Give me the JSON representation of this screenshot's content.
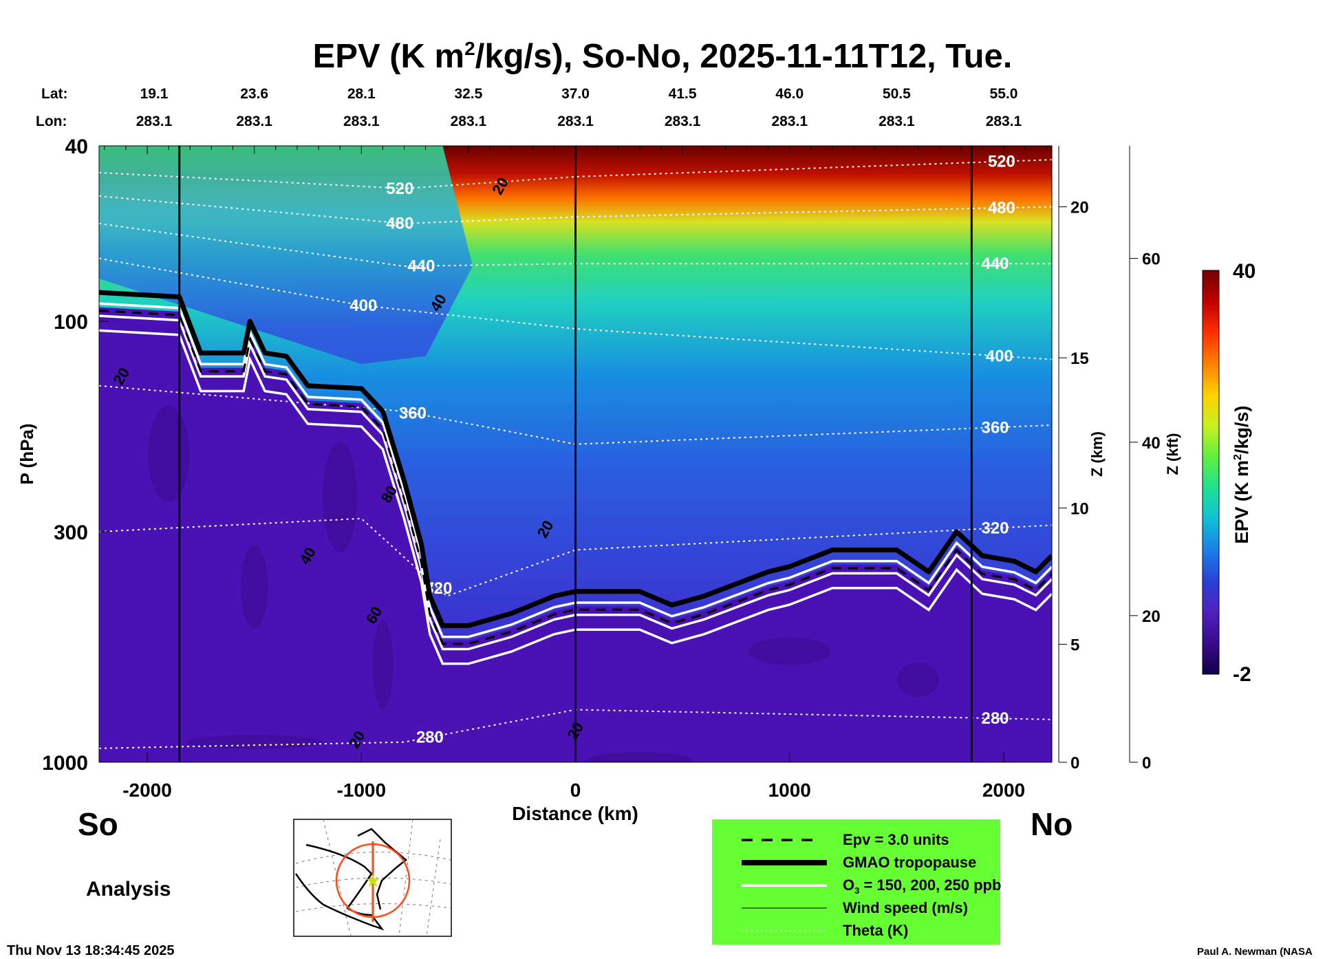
{
  "chart_data": {
    "type": "heatmap",
    "title_main": "EPV (K m",
    "title_sup": "2",
    "title_rest": "/kg/s), So-No, 2025-11-11T12, Tue.",
    "lat_label": "Lat:",
    "lon_label": "Lon:",
    "lats": [
      "19.1",
      "23.6",
      "28.1",
      "32.5",
      "37.0",
      "41.5",
      "46.0",
      "50.5",
      "55.0"
    ],
    "lons": [
      "283.1",
      "283.1",
      "283.1",
      "283.1",
      "283.1",
      "283.1",
      "283.1",
      "283.1",
      "283.1"
    ],
    "latlon_km": [
      -2000,
      -1500,
      -1000,
      -500,
      0,
      500,
      1000,
      1500,
      2000
    ],
    "xlabel": "Distance (km)",
    "xlim": [
      -2225,
      2225
    ],
    "xticks": [
      -2000,
      -1000,
      0,
      1000,
      2000
    ],
    "xtick_labels": [
      "-2000",
      "-1000",
      "0",
      "1000",
      "2000"
    ],
    "ylabel": "P (hPa)",
    "ylim": [
      1000,
      40
    ],
    "yticks": [
      40,
      100,
      300,
      1000
    ],
    "ytick_labels": [
      "40",
      "100",
      "300",
      "1000"
    ],
    "z_km_label": "Z (km)",
    "z_km_ticks": [
      {
        "p": 1000,
        "label": "0"
      },
      {
        "p": 540,
        "label": "5"
      },
      {
        "p": 265,
        "label": "10"
      },
      {
        "p": 121,
        "label": "15"
      },
      {
        "p": 55,
        "label": "20"
      }
    ],
    "z_kft_label": "Z (kft)",
    "z_kft_ticks": [
      {
        "p": 1000,
        "label": "0"
      },
      {
        "p": 465,
        "label": "20"
      },
      {
        "p": 188,
        "label": "40"
      },
      {
        "p": 72,
        "label": "60"
      }
    ],
    "vertical_lines_km": [
      -1850,
      0,
      1850
    ],
    "colorbar": {
      "label_main": "EPV (K m",
      "label_sup": "2",
      "label_rest": "/kg/s)",
      "min_label": "-2",
      "max_label": "40",
      "min": -2,
      "max": 40,
      "colors": [
        "#10004a",
        "#3a0a8c",
        "#5020c0",
        "#2a40d8",
        "#1a80e8",
        "#10c0d8",
        "#20e090",
        "#60f040",
        "#c8f020",
        "#ffd000",
        "#ff8000",
        "#ff3000",
        "#c00000",
        "#700000"
      ]
    },
    "tropopause": [
      [
        -2225,
        86
      ],
      [
        -1850,
        88
      ],
      [
        -1750,
        118
      ],
      [
        -1550,
        118
      ],
      [
        -1520,
        100
      ],
      [
        -1450,
        118
      ],
      [
        -1350,
        120
      ],
      [
        -1250,
        140
      ],
      [
        -1000,
        142
      ],
      [
        -900,
        160
      ],
      [
        -800,
        230
      ],
      [
        -720,
        320
      ],
      [
        -680,
        420
      ],
      [
        -620,
        490
      ],
      [
        -500,
        490
      ],
      [
        -300,
        460
      ],
      [
        -100,
        420
      ],
      [
        0,
        410
      ],
      [
        300,
        410
      ],
      [
        450,
        440
      ],
      [
        600,
        420
      ],
      [
        900,
        370
      ],
      [
        1000,
        360
      ],
      [
        1200,
        330
      ],
      [
        1500,
        330
      ],
      [
        1650,
        370
      ],
      [
        1780,
        300
      ],
      [
        1900,
        340
      ],
      [
        2050,
        350
      ],
      [
        2150,
        370
      ],
      [
        2225,
        340
      ]
    ],
    "theta_contours": [
      {
        "label": "520",
        "points": [
          [
            -2225,
            46
          ],
          [
            -800,
            50
          ],
          [
            0,
            47
          ],
          [
            2225,
            43
          ]
        ],
        "label_km": [
          -820,
          1990
        ]
      },
      {
        "label": "480",
        "points": [
          [
            -2225,
            52
          ],
          [
            -800,
            60
          ],
          [
            0,
            58
          ],
          [
            2225,
            55
          ]
        ],
        "label_km": [
          -820,
          1990
        ]
      },
      {
        "label": "440",
        "points": [
          [
            -2225,
            60
          ],
          [
            -800,
            75
          ],
          [
            0,
            74
          ],
          [
            2225,
            74
          ]
        ],
        "label_km": [
          -720,
          1960
        ]
      },
      {
        "label": "400",
        "points": [
          [
            -2225,
            72
          ],
          [
            -1000,
            92
          ],
          [
            0,
            104
          ],
          [
            2225,
            122
          ]
        ],
        "label_km": [
          -990,
          1980
        ]
      },
      {
        "label": "360",
        "points": [
          [
            -2225,
            140
          ],
          [
            -800,
            160
          ],
          [
            0,
            190
          ],
          [
            2225,
            172
          ]
        ],
        "label_km": [
          -760,
          1960
        ]
      },
      {
        "label": "320",
        "points": [
          [
            -2225,
            300
          ],
          [
            -1000,
            280
          ],
          [
            -600,
            420
          ],
          [
            0,
            330
          ],
          [
            2225,
            290
          ]
        ],
        "label_km": [
          -640,
          1960
        ]
      },
      {
        "label": "280",
        "points": [
          [
            -2225,
            930
          ],
          [
            -800,
            900
          ],
          [
            0,
            760
          ],
          [
            2225,
            800
          ]
        ],
        "label_km": [
          -680,
          1960
        ]
      }
    ],
    "wind_labels": [
      {
        "text": "20",
        "km": -330,
        "p": 50
      },
      {
        "text": "40",
        "km": -620,
        "p": 92
      },
      {
        "text": "20",
        "km": -2100,
        "p": 135
      },
      {
        "text": "80",
        "km": -850,
        "p": 250
      },
      {
        "text": "40",
        "km": -1230,
        "p": 345
      },
      {
        "text": "60",
        "km": -920,
        "p": 470
      },
      {
        "text": "20",
        "km": -120,
        "p": 300
      },
      {
        "text": "20",
        "km": -1000,
        "p": 900
      },
      {
        "text": "20",
        "km": 20,
        "p": 860
      }
    ],
    "legend_placement": "bottom-center"
  },
  "labels": {
    "so": "So",
    "no": "No",
    "analysis": "Analysis",
    "timestamp": "Thu Nov 13 18:34:45 2025",
    "credit": "Paul A. Newman (NASA"
  },
  "legend": {
    "items": [
      {
        "label": "Epv = 3.0 units",
        "style": "dashed"
      },
      {
        "label": "GMAO tropopause",
        "style": "thick"
      },
      {
        "label_main": "O",
        "label_sub": "3",
        "label_rest": " = 150, 200, 250 ppb",
        "style": "white"
      },
      {
        "label": "Wind speed (m/s)",
        "style": "thin"
      },
      {
        "label": "Theta (K)",
        "style": "dotted"
      }
    ],
    "bg": "#66ff33"
  }
}
